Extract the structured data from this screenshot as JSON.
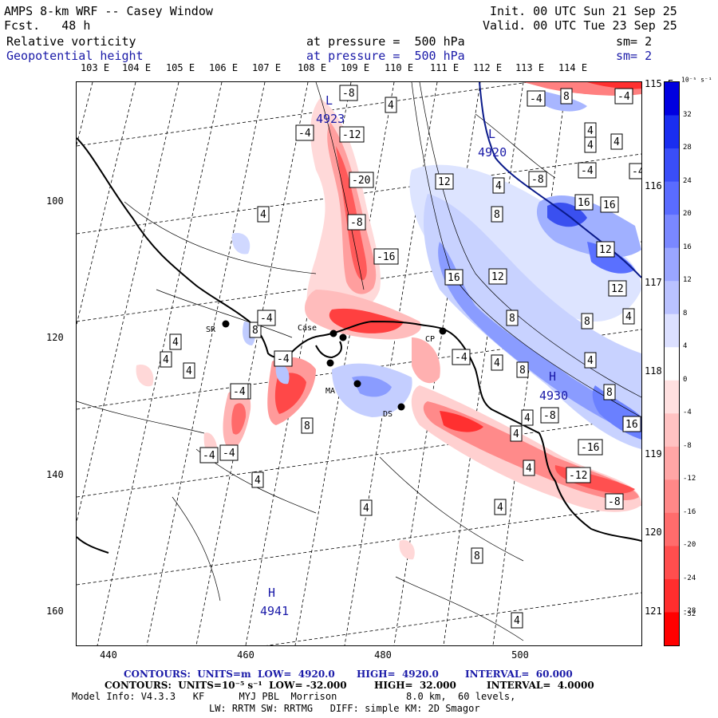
{
  "header": {
    "title": "AMPS 8-km WRF -- Casey Window",
    "forecast": "Fcst.   48 h",
    "init": "Init. 00 UTC Sun 21 Sep 25",
    "valid": "Valid. 00 UTC Tue 23 Sep 25",
    "field1_name": "Relative vorticity",
    "field1_level": "at pressure =  500 hPa",
    "field1_smooth": "sm= 2",
    "field2_name": "Geopotential height",
    "field2_level": "at pressure =  500 hPa",
    "field2_smooth": "sm= 2"
  },
  "colors": {
    "blue_text": "#1a1aa8",
    "pos_vorticity": "#ff2020",
    "neg_vorticity": "#2020ff"
  },
  "axes": {
    "top_lon": [
      "103 E",
      "104 E",
      "105 E",
      "106 E",
      "107 E",
      "108 E",
      "109 E",
      "110 E",
      "111 E",
      "112 E",
      "113 E",
      "114 E"
    ],
    "right_lon": [
      "115 E",
      "116 E",
      "117 E",
      "118 E",
      "119 E",
      "120 E",
      "121 E"
    ],
    "left_y": [
      "100",
      "120",
      "140",
      "160"
    ],
    "bottom_x": [
      "440",
      "460",
      "480",
      "500"
    ]
  },
  "colorbar": {
    "units": "10⁻⁵ s⁻¹",
    "labels": [
      "32",
      "28",
      "24",
      "20",
      "16",
      "12",
      "8",
      "4",
      "0",
      "-4",
      "-8",
      "-12",
      "-16",
      "-20",
      "-24",
      "-28",
      "-32"
    ]
  },
  "map_labels": {
    "lows": [
      {
        "letter": "L",
        "value": "4923"
      },
      {
        "letter": "L",
        "value": "4920"
      }
    ],
    "highs": [
      {
        "letter": "H",
        "value": "4930"
      },
      {
        "letter": "H",
        "value": "4941"
      }
    ],
    "stations": [
      "SR",
      "Case",
      "CP",
      "DS",
      "MA"
    ]
  },
  "contour_labels": [
    "-4",
    "-8",
    "-12",
    "-20",
    "-8",
    "-16",
    "4",
    "4",
    "4",
    "8",
    "-4",
    "-4",
    "-4",
    "4",
    "4",
    "12",
    "16",
    "12",
    "16",
    "12",
    "8",
    "12",
    "-8",
    "4",
    "8",
    "4",
    "-4",
    "8",
    "4",
    "16",
    "8",
    "4",
    "-4",
    "-4",
    "-4",
    "4",
    "8",
    "-8",
    "-16",
    "-12",
    "-8",
    "4",
    "4",
    "4",
    "16",
    "4",
    "8",
    "4",
    "-4",
    "-4",
    "4",
    "-4",
    "4",
    "4",
    "-4",
    "8",
    "4",
    "8"
  ],
  "footer": {
    "line1_units": "CONTOURS:  UNITS=m  LOW=  4920.0",
    "line1_high": "HIGH=  4920.0",
    "line1_interval": "INTERVAL=  60.000",
    "line2_units": "CONTOURS:  UNITS=10⁻⁵ s⁻¹  LOW= -32.000",
    "line2_high": "HIGH=  32.000",
    "line2_interval": "INTERVAL=  4.0000",
    "model_info": "Model Info: V4.3.3   KF      MYJ PBL  Morrison            8.0 km,  60 levels,",
    "model_info2": "LW: RRTM SW: RRTMG   DIFF: simple KM: 2D Smagor"
  }
}
